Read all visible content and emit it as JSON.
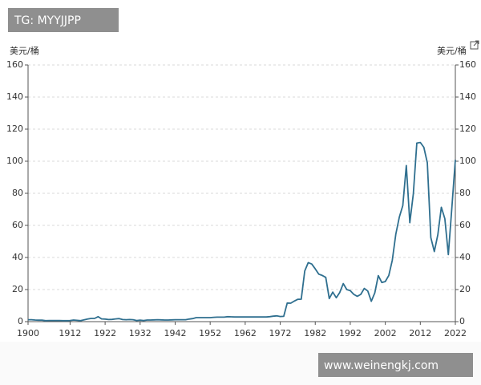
{
  "chart_data": {
    "type": "line",
    "y_label": "美元/桶",
    "y2_label": "美元/桶",
    "annotations": [
      "TG: MYYJJPP",
      "www.weinengkj.com"
    ],
    "color": "#2f6f8f",
    "grid": true,
    "xlim": [
      1900,
      2022
    ],
    "xticks": [
      1900,
      1912,
      1922,
      1932,
      1942,
      1952,
      1962,
      1972,
      1982,
      1992,
      2002,
      2012,
      2022
    ],
    "ylim": [
      0,
      160
    ],
    "yticks": [
      0,
      20,
      40,
      60,
      80,
      100,
      120,
      140,
      160
    ],
    "y2lim": [
      0,
      160
    ],
    "y2ticks": [
      0,
      20,
      40,
      60,
      80,
      100,
      120,
      140,
      160
    ],
    "x": [
      1900,
      1901,
      1902,
      1903,
      1904,
      1905,
      1906,
      1907,
      1908,
      1909,
      1910,
      1911,
      1912,
      1913,
      1914,
      1915,
      1916,
      1917,
      1918,
      1919,
      1920,
      1921,
      1922,
      1923,
      1924,
      1925,
      1926,
      1927,
      1928,
      1929,
      1930,
      1931,
      1932,
      1933,
      1934,
      1935,
      1936,
      1937,
      1938,
      1939,
      1940,
      1941,
      1942,
      1943,
      1944,
      1945,
      1946,
      1947,
      1948,
      1949,
      1950,
      1951,
      1952,
      1953,
      1954,
      1955,
      1956,
      1957,
      1958,
      1959,
      1960,
      1961,
      1962,
      1963,
      1964,
      1965,
      1966,
      1967,
      1968,
      1969,
      1970,
      1971,
      1972,
      1973,
      1974,
      1975,
      1976,
      1977,
      1978,
      1979,
      1980,
      1981,
      1982,
      1983,
      1984,
      1985,
      1986,
      1987,
      1988,
      1989,
      1990,
      1991,
      1992,
      1993,
      1994,
      1995,
      1996,
      1997,
      1998,
      1999,
      2000,
      2001,
      2002,
      2003,
      2004,
      2005,
      2006,
      2007,
      2008,
      2009,
      2010,
      2011,
      2012,
      2013,
      2014,
      2015,
      2016,
      2017,
      2018,
      2019,
      2020,
      2021,
      2022
    ],
    "values": [
      1.2,
      1.2,
      1.0,
      0.9,
      0.9,
      0.6,
      0.7,
      0.7,
      0.7,
      0.7,
      0.6,
      0.6,
      0.7,
      1.0,
      0.8,
      0.6,
      1.1,
      1.6,
      2.0,
      2.0,
      3.1,
      1.7,
      1.6,
      1.3,
      1.4,
      1.7,
      1.9,
      1.3,
      1.2,
      1.3,
      1.2,
      0.7,
      0.9,
      0.7,
      1.0,
      1.0,
      1.1,
      1.2,
      1.1,
      1.0,
      1.0,
      1.1,
      1.2,
      1.2,
      1.2,
      1.2,
      1.6,
      1.9,
      2.5,
      2.5,
      2.5,
      2.5,
      2.5,
      2.7,
      2.8,
      2.8,
      2.8,
      3.1,
      3.0,
      2.9,
      2.9,
      2.9,
      2.9,
      2.9,
      2.9,
      2.9,
      2.9,
      2.9,
      2.9,
      3.1,
      3.4,
      3.6,
      3.2,
      3.3,
      11.6,
      11.5,
      12.8,
      13.9,
      14.0,
      31.6,
      36.8,
      35.9,
      32.9,
      29.6,
      28.8,
      27.6,
      14.4,
      18.4,
      14.9,
      18.2,
      23.7,
      20.0,
      19.3,
      17.0,
      15.8,
      17.0,
      20.7,
      19.1,
      12.7,
      17.9,
      28.7,
      24.4,
      25.0,
      28.8,
      38.3,
      54.5,
      65.1,
      72.4,
      97.3,
      61.7,
      79.6,
      111.3,
      111.7,
      108.7,
      99.0,
      52.4,
      43.7,
      54.2,
      71.3,
      64.2,
      41.8,
      70.9,
      100.9
    ]
  }
}
